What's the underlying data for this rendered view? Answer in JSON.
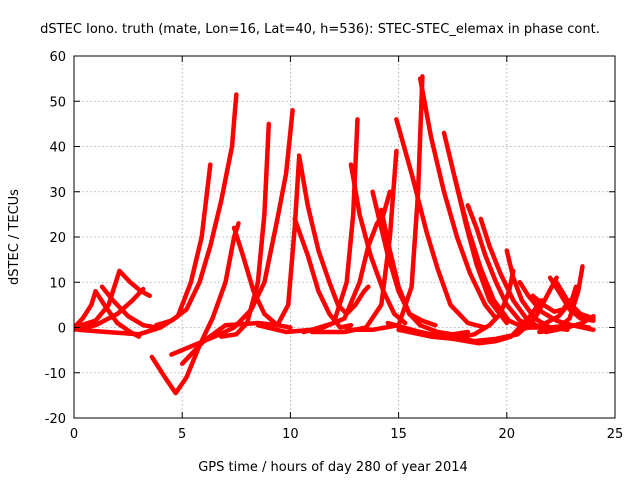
{
  "chart_data": {
    "type": "scatter",
    "title": "dSTEC Iono. truth (mate, Lon=16, Lat=40, h=536): STEC-STEC_elemax in phase cont.",
    "xlabel": "GPS time / hours of day 280 of year 2014",
    "ylabel": "dSTEC  / TECUs",
    "xlim": [
      0,
      25
    ],
    "ylim": [
      -20,
      60
    ],
    "xticks": [
      0,
      5,
      10,
      15,
      20,
      25
    ],
    "yticks": [
      -20,
      -10,
      0,
      10,
      20,
      30,
      40,
      50,
      60
    ],
    "grid": true,
    "marker": "plus",
    "color": "#ff0000",
    "series": [
      {
        "points": [
          [
            0,
            0
          ],
          [
            0.4,
            2
          ],
          [
            0.8,
            5
          ],
          [
            1.0,
            8
          ]
        ]
      },
      {
        "points": [
          [
            1.0,
            8
          ],
          [
            1.4,
            5
          ],
          [
            2.0,
            1
          ],
          [
            2.6,
            -1
          ],
          [
            3.0,
            -2
          ]
        ]
      },
      {
        "points": [
          [
            1.3,
            9
          ],
          [
            1.8,
            6
          ],
          [
            2.5,
            2.5
          ],
          [
            3.2,
            0.5
          ],
          [
            3.8,
            0
          ]
        ]
      },
      {
        "points": [
          [
            0,
            -0.5
          ],
          [
            1.0,
            0.5
          ],
          [
            2.0,
            3
          ],
          [
            2.7,
            6
          ],
          [
            3.2,
            8.5
          ]
        ]
      },
      {
        "points": [
          [
            0,
            0
          ],
          [
            1.0,
            1.5
          ],
          [
            1.6,
            5
          ],
          [
            2.1,
            12.5
          ],
          [
            2.6,
            10
          ],
          [
            3.1,
            8
          ],
          [
            3.5,
            7
          ]
        ]
      },
      {
        "points": [
          [
            0.2,
            -0.5
          ],
          [
            1.5,
            -1
          ],
          [
            3.0,
            -1.5
          ],
          [
            4.0,
            0
          ],
          [
            4.8,
            2.5
          ],
          [
            5.4,
            10
          ],
          [
            5.9,
            20
          ],
          [
            6.3,
            36
          ]
        ]
      },
      {
        "points": [
          [
            3.6,
            -6.5
          ],
          [
            4.2,
            -11
          ],
          [
            4.7,
            -14.5
          ],
          [
            5.2,
            -11
          ],
          [
            5.8,
            -4
          ],
          [
            6.4,
            2
          ],
          [
            7.0,
            10
          ],
          [
            7.4,
            20
          ],
          [
            7.6,
            23
          ]
        ]
      },
      {
        "points": [
          [
            3.8,
            0.5
          ],
          [
            4.5,
            1.5
          ],
          [
            5.2,
            4
          ],
          [
            5.8,
            10
          ],
          [
            6.3,
            18
          ],
          [
            6.8,
            28
          ],
          [
            7.3,
            40
          ],
          [
            7.5,
            51.5
          ]
        ]
      },
      {
        "points": [
          [
            7.4,
            22
          ],
          [
            7.8,
            16
          ],
          [
            8.3,
            8
          ],
          [
            8.8,
            3
          ],
          [
            9.4,
            0.5
          ],
          [
            10.0,
            0
          ]
        ]
      },
      {
        "points": [
          [
            6.8,
            -2
          ],
          [
            7.5,
            -1.5
          ],
          [
            8.0,
            1
          ],
          [
            8.5,
            10
          ],
          [
            8.8,
            25
          ],
          [
            9.0,
            45
          ]
        ]
      },
      {
        "points": [
          [
            4.5,
            -6
          ],
          [
            5.5,
            -4
          ],
          [
            6.5,
            -2
          ],
          [
            7.4,
            0
          ],
          [
            8.2,
            4
          ],
          [
            8.8,
            10
          ],
          [
            9.4,
            24
          ],
          [
            9.8,
            34
          ],
          [
            10.1,
            48
          ]
        ]
      },
      {
        "points": [
          [
            5.0,
            -8
          ],
          [
            6.0,
            -3
          ],
          [
            7.0,
            0.5
          ],
          [
            8.5,
            1
          ],
          [
            9.4,
            0.5
          ],
          [
            9.9,
            5
          ],
          [
            10.2,
            22
          ],
          [
            10.4,
            37.5
          ]
        ]
      },
      {
        "points": [
          [
            10.2,
            24
          ],
          [
            10.8,
            16
          ],
          [
            11.3,
            8
          ],
          [
            11.8,
            3
          ],
          [
            12.3,
            0
          ],
          [
            12.8,
            0.5
          ]
        ]
      },
      {
        "points": [
          [
            10.4,
            38
          ],
          [
            10.8,
            27
          ],
          [
            11.3,
            17
          ],
          [
            11.8,
            10
          ],
          [
            12.2,
            5
          ],
          [
            12.6,
            3
          ],
          [
            13.0,
            5
          ],
          [
            13.4,
            8
          ],
          [
            13.6,
            9
          ]
        ]
      },
      {
        "points": [
          [
            8.5,
            0.5
          ],
          [
            9.8,
            -1
          ],
          [
            11.0,
            -0.5
          ],
          [
            12.0,
            1
          ],
          [
            12.6,
            10
          ],
          [
            12.9,
            25
          ],
          [
            13.1,
            46
          ]
        ]
      },
      {
        "points": [
          [
            10.6,
            -1
          ],
          [
            11.5,
            0
          ],
          [
            12.5,
            2
          ],
          [
            13.2,
            10
          ],
          [
            13.6,
            18
          ],
          [
            14.0,
            23
          ],
          [
            14.3,
            25
          ],
          [
            14.6,
            30
          ]
        ]
      },
      {
        "points": [
          [
            12.8,
            36
          ],
          [
            13.2,
            25
          ],
          [
            13.7,
            16
          ],
          [
            14.3,
            8
          ],
          [
            14.8,
            3
          ],
          [
            15.3,
            1
          ]
        ]
      },
      {
        "points": [
          [
            13.8,
            30
          ],
          [
            14.1,
            24
          ],
          [
            14.5,
            16
          ],
          [
            15.0,
            8
          ],
          [
            15.5,
            3
          ],
          [
            16.1,
            1.5
          ],
          [
            16.7,
            0.5
          ]
        ]
      },
      {
        "points": [
          [
            11.0,
            -1
          ],
          [
            12.5,
            -1
          ],
          [
            13.5,
            0
          ],
          [
            14.2,
            5
          ],
          [
            14.6,
            20
          ],
          [
            14.9,
            39
          ]
        ]
      },
      {
        "points": [
          [
            12.6,
            -0.5
          ],
          [
            13.8,
            -0.5
          ],
          [
            15.0,
            0.5
          ],
          [
            15.6,
            9
          ],
          [
            15.9,
            30
          ],
          [
            16.1,
            55.5
          ]
        ]
      },
      {
        "points": [
          [
            14.2,
            26
          ],
          [
            14.6,
            17
          ],
          [
            15.0,
            9
          ],
          [
            15.5,
            3
          ],
          [
            16.0,
            0.5
          ],
          [
            16.8,
            -1
          ],
          [
            17.5,
            -1.5
          ],
          [
            18.2,
            -1
          ]
        ]
      },
      {
        "points": [
          [
            14.9,
            46
          ],
          [
            15.6,
            34
          ],
          [
            16.3,
            21
          ],
          [
            16.8,
            13
          ],
          [
            17.4,
            5
          ],
          [
            18.2,
            1
          ],
          [
            19.0,
            0
          ]
        ]
      },
      {
        "points": [
          [
            16.0,
            55
          ],
          [
            16.5,
            42
          ],
          [
            17.1,
            30
          ],
          [
            17.7,
            20
          ],
          [
            18.3,
            12
          ],
          [
            19.0,
            5
          ],
          [
            19.5,
            2
          ]
        ]
      },
      {
        "points": [
          [
            17.1,
            43
          ],
          [
            17.6,
            33
          ],
          [
            18.1,
            23
          ],
          [
            18.6,
            14
          ],
          [
            19.2,
            6
          ],
          [
            20.0,
            1
          ]
        ]
      },
      {
        "points": [
          [
            17.6,
            33
          ],
          [
            18.2,
            22
          ],
          [
            18.8,
            13
          ],
          [
            19.4,
            6
          ],
          [
            20.1,
            1.5
          ],
          [
            20.8,
            0
          ]
        ]
      },
      {
        "points": [
          [
            18.2,
            27
          ],
          [
            18.6,
            22
          ],
          [
            19.0,
            16
          ],
          [
            19.5,
            10
          ],
          [
            20.0,
            5
          ],
          [
            20.6,
            1.5
          ],
          [
            21.5,
            0
          ]
        ]
      },
      {
        "points": [
          [
            18.8,
            24
          ],
          [
            19.2,
            18
          ],
          [
            19.7,
            12
          ],
          [
            20.3,
            6
          ],
          [
            20.9,
            2
          ],
          [
            21.5,
            0
          ]
        ]
      },
      {
        "points": [
          [
            15.0,
            -0.5
          ],
          [
            16.5,
            -2
          ],
          [
            17.5,
            -2.5
          ],
          [
            18.5,
            -1.5
          ],
          [
            19.2,
            0.5
          ],
          [
            19.7,
            3
          ],
          [
            20.1,
            8
          ],
          [
            20.3,
            12.5
          ]
        ]
      },
      {
        "points": [
          [
            14.5,
            1
          ],
          [
            16.0,
            -1
          ],
          [
            17.5,
            -2.5
          ],
          [
            18.7,
            -3.5
          ],
          [
            19.5,
            -3
          ],
          [
            20.2,
            -2
          ],
          [
            21.0,
            2
          ],
          [
            21.6,
            6
          ]
        ]
      },
      {
        "points": [
          [
            17.5,
            -2
          ],
          [
            18.5,
            -3
          ],
          [
            19.5,
            -2.5
          ],
          [
            20.5,
            -1.5
          ],
          [
            21.3,
            2
          ],
          [
            21.8,
            6.5
          ],
          [
            22.3,
            11
          ]
        ]
      },
      {
        "points": [
          [
            20.0,
            17
          ],
          [
            20.3,
            11
          ],
          [
            20.7,
            6
          ],
          [
            21.3,
            2
          ],
          [
            22.0,
            0
          ],
          [
            22.8,
            -0.5
          ]
        ]
      },
      {
        "points": [
          [
            21.2,
            7
          ],
          [
            21.7,
            5
          ],
          [
            22.2,
            3.5
          ],
          [
            22.6,
            4
          ],
          [
            22.9,
            6
          ]
        ]
      },
      {
        "points": [
          [
            20.6,
            10
          ],
          [
            21.0,
            7
          ],
          [
            21.6,
            3.5
          ],
          [
            22.3,
            1.5
          ],
          [
            23.0,
            0.5
          ],
          [
            23.8,
            0
          ]
        ]
      },
      {
        "points": [
          [
            22.0,
            11
          ],
          [
            22.4,
            8
          ],
          [
            22.9,
            4
          ],
          [
            23.4,
            2
          ],
          [
            24.0,
            1.5
          ]
        ]
      },
      {
        "points": [
          [
            22.3,
            10
          ],
          [
            22.8,
            6
          ],
          [
            23.4,
            3
          ],
          [
            24.0,
            2
          ]
        ]
      },
      {
        "points": [
          [
            21.5,
            -1
          ],
          [
            22.3,
            -0.5
          ],
          [
            22.9,
            2
          ],
          [
            23.3,
            8
          ],
          [
            23.5,
            13.5
          ]
        ]
      },
      {
        "points": [
          [
            20.5,
            -0.5
          ],
          [
            21.6,
            0.5
          ],
          [
            22.4,
            2.5
          ],
          [
            23.0,
            6
          ],
          [
            23.2,
            9
          ]
        ]
      },
      {
        "points": [
          [
            21.8,
            -1
          ],
          [
            22.8,
            0
          ],
          [
            23.5,
            1
          ],
          [
            24.0,
            2.5
          ]
        ]
      },
      {
        "points": [
          [
            21.0,
            0
          ],
          [
            22.0,
            0
          ],
          [
            23.0,
            0.5
          ],
          [
            24.0,
            -0.5
          ]
        ]
      }
    ]
  }
}
